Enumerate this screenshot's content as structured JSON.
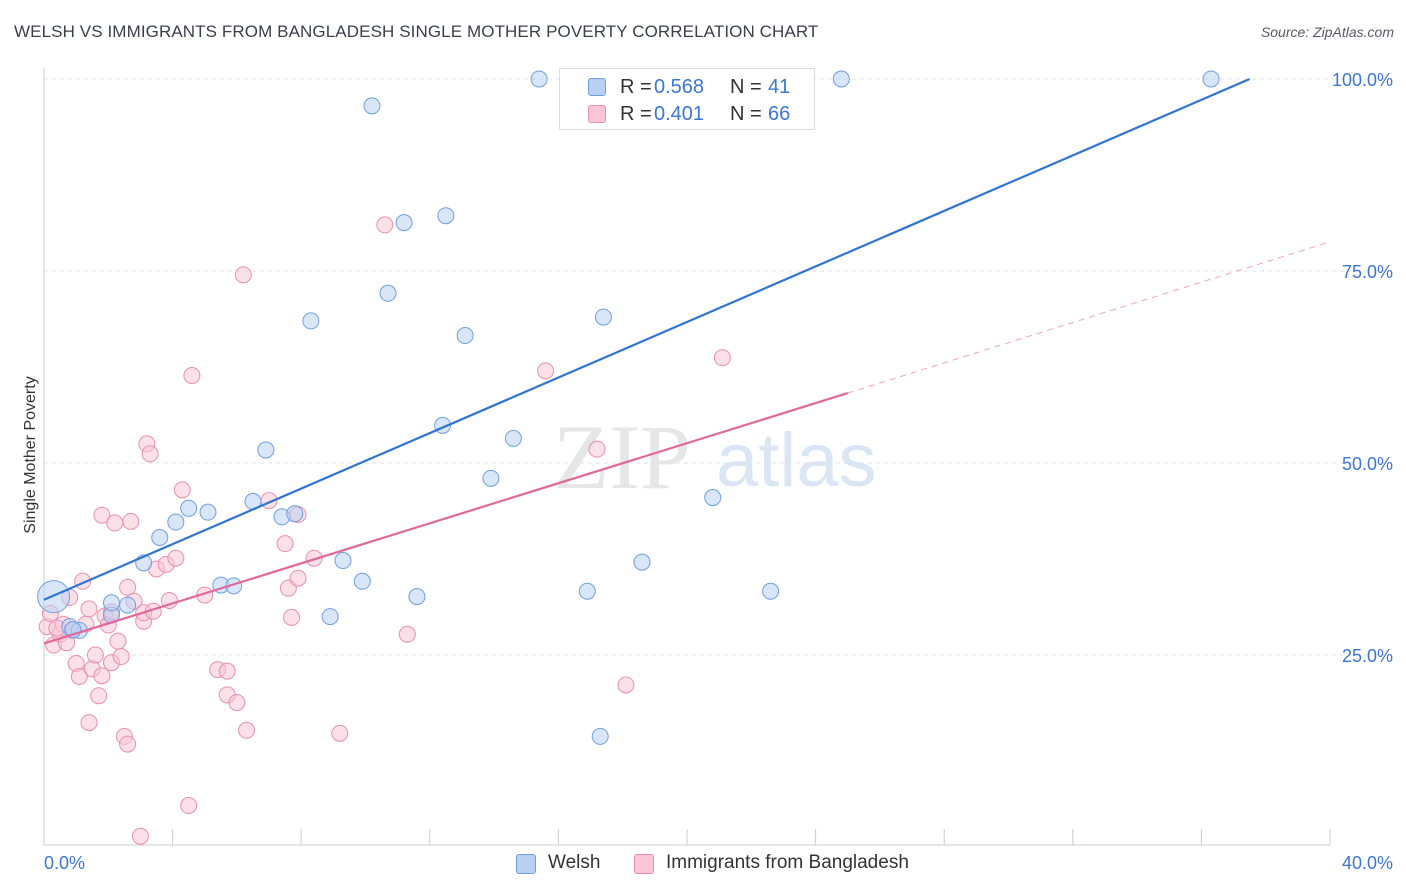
{
  "header": {
    "title": "WELSH VS IMMIGRANTS FROM BANGLADESH SINGLE MOTHER POVERTY CORRELATION CHART",
    "source": "Source: ZipAtlas.com"
  },
  "watermark": {
    "zip": "ZIP",
    "atlas": "atlas"
  },
  "legend": {
    "series": [
      {
        "r_label": "R =",
        "r_value": "0.568",
        "n_label": "N =",
        "n_value": "41"
      },
      {
        "r_label": "R =",
        "r_value": "0.401",
        "n_label": "N =",
        "n_value": "66"
      }
    ]
  },
  "bottom_legend": {
    "welsh": "Welsh",
    "bangladesh": "Immigrants from Bangladesh"
  },
  "colors": {
    "welsh_fill": "#b8d1f3",
    "welsh_stroke": "#6f9fe0",
    "welsh_line": "#2f74d0",
    "bang_fill": "#f8c6d5",
    "bang_stroke": "#ea8fae",
    "bang_line": "#e0689a",
    "grid": "#dde1e8",
    "tick_label": "#3c76d6",
    "axis": "#c8ccd4"
  },
  "chart_data": {
    "type": "scatter",
    "title": "WELSH VS IMMIGRANTS FROM BANGLADESH SINGLE MOTHER POVERTY CORRELATION CHART",
    "xlabel": "",
    "ylabel": "Single Mother Poverty",
    "xlim": [
      0,
      40
    ],
    "ylim": [
      0,
      102
    ],
    "x_tick_labels": [
      "0.0%",
      "40.0%"
    ],
    "y_ticks": [
      25,
      50,
      75,
      100
    ],
    "y_tick_labels": [
      "25.0%",
      "50.0%",
      "75.0%",
      "100.0%"
    ],
    "grid": true,
    "legend_position": "top-center",
    "series": [
      {
        "name": "Welsh",
        "r": 0.568,
        "n": 41,
        "trend": {
          "x": [
            0,
            37.5
          ],
          "y": [
            32.2,
            100
          ]
        },
        "points": [
          [
            0.3,
            32.6
          ],
          [
            0.8,
            28.7
          ],
          [
            1.1,
            28.2
          ],
          [
            2.1,
            30.2
          ],
          [
            2.1,
            31.8
          ],
          [
            2.6,
            31.5
          ],
          [
            3.1,
            37.0
          ],
          [
            3.6,
            40.3
          ],
          [
            4.1,
            42.3
          ],
          [
            4.5,
            44.1
          ],
          [
            5.1,
            43.6
          ],
          [
            5.5,
            34.1
          ],
          [
            5.9,
            34.0
          ],
          [
            6.5,
            45.0
          ],
          [
            6.9,
            51.7
          ],
          [
            7.4,
            43.0
          ],
          [
            7.8,
            43.4
          ],
          [
            8.3,
            68.5
          ],
          [
            8.9,
            30.0
          ],
          [
            9.3,
            37.3
          ],
          [
            9.9,
            34.6
          ],
          [
            10.2,
            96.5
          ],
          [
            10.7,
            72.1
          ],
          [
            11.2,
            81.3
          ],
          [
            11.6,
            32.6
          ],
          [
            12.4,
            54.9
          ],
          [
            12.5,
            82.2
          ],
          [
            13.1,
            66.6
          ],
          [
            13.9,
            48.0
          ],
          [
            14.6,
            53.2
          ],
          [
            15.4,
            100
          ],
          [
            16.9,
            33.3
          ],
          [
            17.3,
            14.4
          ],
          [
            17.4,
            69.0
          ],
          [
            18.6,
            37.1
          ],
          [
            19.6,
            100
          ],
          [
            20.8,
            45.5
          ],
          [
            22.6,
            33.3
          ],
          [
            24.8,
            100
          ],
          [
            36.3,
            100
          ],
          [
            0.9,
            28.3
          ]
        ]
      },
      {
        "name": "Immigrants from Bangladesh",
        "r": 0.401,
        "n": 66,
        "trend": {
          "x": [
            0,
            25
          ],
          "y": [
            26.5,
            59.1
          ]
        },
        "trend_ext": {
          "x": [
            25,
            40
          ],
          "y": [
            59.1,
            78.8
          ]
        },
        "points": [
          [
            0.1,
            28.7
          ],
          [
            0.2,
            30.4
          ],
          [
            0.3,
            26.3
          ],
          [
            0.5,
            27.7
          ],
          [
            0.6,
            29.0
          ],
          [
            0.7,
            26.6
          ],
          [
            0.8,
            32.5
          ],
          [
            0.9,
            28.2
          ],
          [
            1.0,
            23.9
          ],
          [
            1.1,
            22.2
          ],
          [
            1.2,
            34.6
          ],
          [
            1.4,
            31.0
          ],
          [
            1.4,
            16.2
          ],
          [
            1.5,
            23.2
          ],
          [
            1.6,
            25.0
          ],
          [
            1.7,
            19.7
          ],
          [
            1.8,
            22.3
          ],
          [
            1.8,
            43.2
          ],
          [
            1.9,
            30.1
          ],
          [
            2.0,
            28.9
          ],
          [
            2.1,
            30.6
          ],
          [
            2.1,
            24.0
          ],
          [
            2.2,
            42.2
          ],
          [
            2.3,
            26.8
          ],
          [
            2.4,
            24.8
          ],
          [
            2.5,
            14.4
          ],
          [
            2.6,
            33.8
          ],
          [
            2.6,
            13.4
          ],
          [
            2.7,
            42.4
          ],
          [
            2.8,
            32.0
          ],
          [
            3.0,
            1.4
          ],
          [
            3.1,
            29.4
          ],
          [
            3.1,
            30.5
          ],
          [
            3.2,
            52.5
          ],
          [
            3.3,
            51.2
          ],
          [
            3.4,
            30.7
          ],
          [
            3.5,
            36.2
          ],
          [
            3.8,
            36.8
          ],
          [
            3.9,
            32.1
          ],
          [
            4.1,
            37.6
          ],
          [
            4.3,
            46.5
          ],
          [
            4.5,
            5.4
          ],
          [
            4.6,
            61.4
          ],
          [
            5.0,
            32.8
          ],
          [
            5.4,
            23.1
          ],
          [
            5.7,
            22.9
          ],
          [
            5.7,
            19.8
          ],
          [
            6.0,
            18.8
          ],
          [
            6.2,
            74.5
          ],
          [
            6.3,
            15.2
          ],
          [
            7.0,
            45.1
          ],
          [
            7.5,
            39.5
          ],
          [
            7.6,
            33.7
          ],
          [
            7.7,
            29.9
          ],
          [
            7.9,
            35.0
          ],
          [
            7.9,
            43.3
          ],
          [
            8.4,
            37.6
          ],
          [
            9.2,
            14.8
          ],
          [
            10.6,
            81.0
          ],
          [
            11.3,
            27.7
          ],
          [
            15.6,
            62.0
          ],
          [
            17.2,
            51.8
          ],
          [
            18.1,
            21.1
          ],
          [
            21.1,
            63.7
          ],
          [
            0.4,
            28.5
          ],
          [
            1.3,
            29.0
          ]
        ]
      }
    ]
  }
}
